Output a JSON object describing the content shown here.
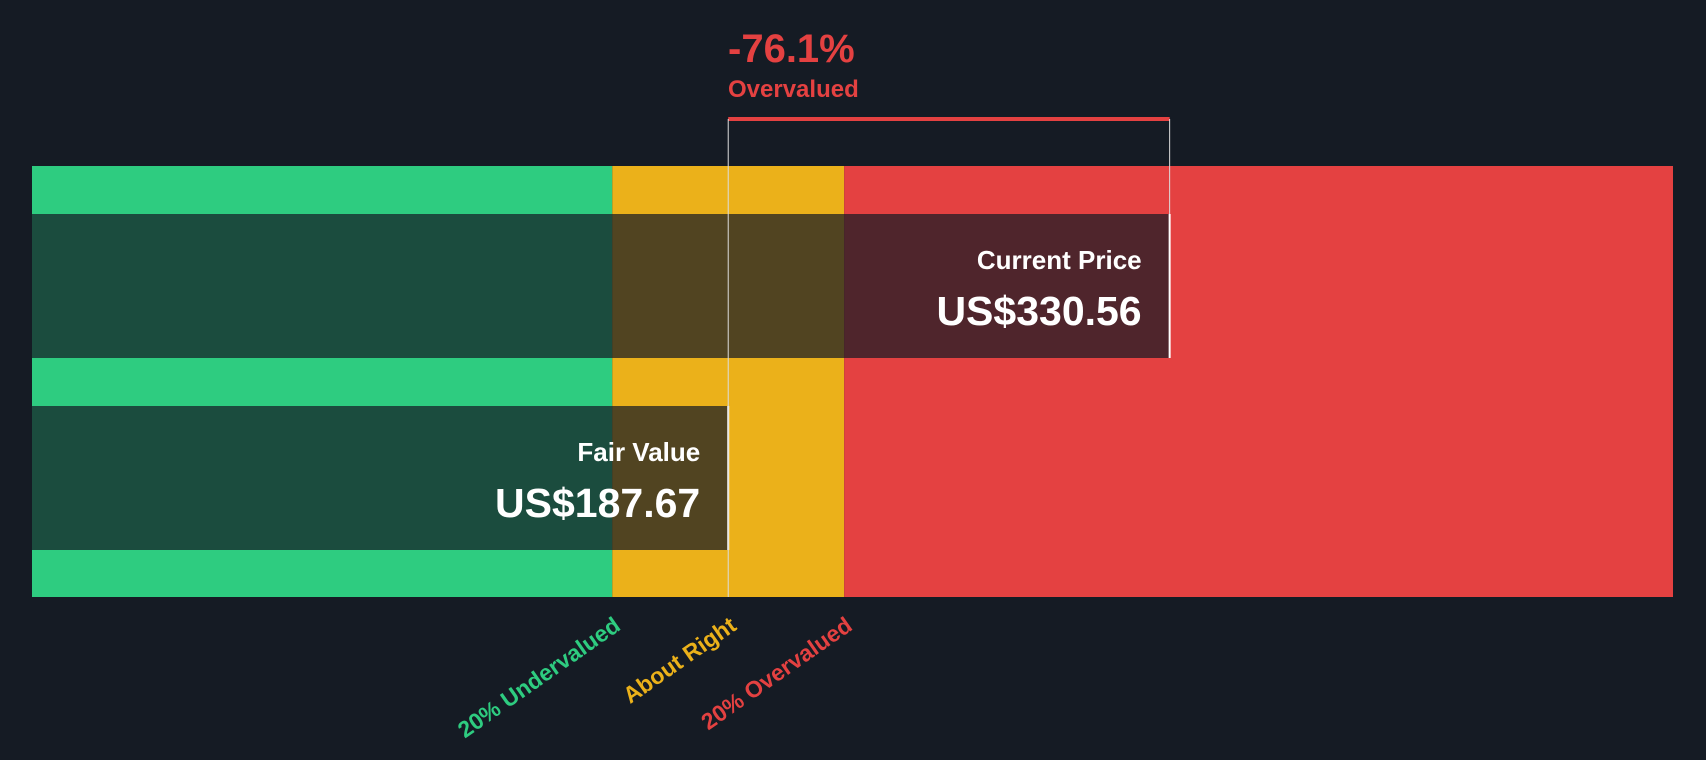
{
  "chart_data": {
    "type": "valuation",
    "annotation": "-76.1%",
    "annotation_note": "Overvalued",
    "categories": [
      "Current Price",
      "Fair Value"
    ],
    "values": [
      330.56,
      187.67
    ],
    "value_labels": [
      "US$330.56",
      "US$187.67"
    ],
    "xlim": [
      -37.7,
      493.5
    ],
    "zones": [
      {
        "label": "20% Undervalued",
        "color": "#2ecc80",
        "from": -37.7,
        "to": 150.14
      },
      {
        "label": "About Right",
        "color": "#ebb11a",
        "from": 150.14,
        "to": 225.2
      },
      {
        "label": "20% Overvalued",
        "color": "#e44141",
        "from": 225.2,
        "to": 493.5
      }
    ],
    "bar_color": "#151b24"
  }
}
